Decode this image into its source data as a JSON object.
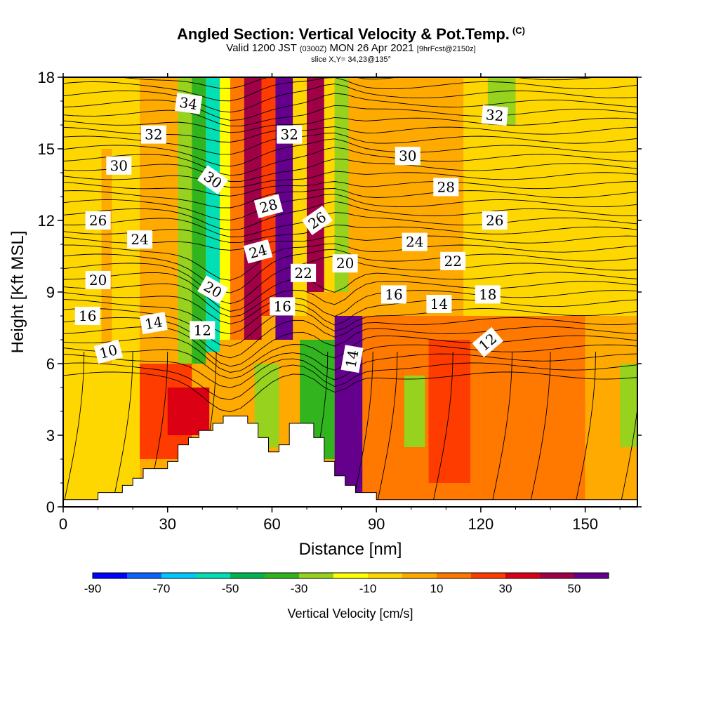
{
  "header": {
    "title": "Angled Section: Vertical Velocity & Pot.Temp.",
    "title_suffix": "(C)",
    "valid_prefix": "Valid 1200 JST",
    "valid_z": "(0300Z)",
    "valid_date": "MON 26 Apr 2021",
    "forecast": "[9hrFcst@2150z]",
    "slice": "slice X,Y= 34,23@135°"
  },
  "chart_data": {
    "type": "heatmap",
    "xlabel": "Distance [nm]",
    "ylabel": "Height [Kft MSL]",
    "xlim": [
      0,
      165
    ],
    "ylim": [
      0,
      18
    ],
    "xticks": [
      0,
      30,
      60,
      90,
      120,
      150
    ],
    "yticks": [
      0,
      3,
      6,
      9,
      12,
      15,
      18
    ],
    "colorbar": {
      "title": "Vertical Velocity [cm/s]",
      "bounds": [
        -90,
        60
      ],
      "tick_labels": [
        "-90",
        "-70",
        "-50",
        "-30",
        "-10",
        "10",
        "30",
        "50"
      ],
      "tick_values": [
        -90,
        -70,
        -50,
        -30,
        -10,
        10,
        30,
        50
      ],
      "colors": [
        "#0000ff",
        "#0a64ff",
        "#00c8ff",
        "#00e0b4",
        "#00b450",
        "#32b41e",
        "#96d21e",
        "#ffff00",
        "#ffd700",
        "#ffaa00",
        "#ff7800",
        "#ff3c00",
        "#dc0014",
        "#a00046",
        "#64008c"
      ]
    },
    "terrain": [
      [
        0,
        0.3
      ],
      [
        10,
        0.3
      ],
      [
        10,
        0.6
      ],
      [
        17,
        0.6
      ],
      [
        17,
        0.9
      ],
      [
        20,
        0.9
      ],
      [
        20,
        1.2
      ],
      [
        23,
        1.2
      ],
      [
        23,
        1.6
      ],
      [
        30,
        1.6
      ],
      [
        30,
        1.9
      ],
      [
        33,
        1.9
      ],
      [
        33,
        2.6
      ],
      [
        36,
        2.6
      ],
      [
        36,
        2.9
      ],
      [
        39,
        2.9
      ],
      [
        39,
        3.2
      ],
      [
        43,
        3.2
      ],
      [
        43,
        3.5
      ],
      [
        46,
        3.5
      ],
      [
        46,
        3.8
      ],
      [
        53,
        3.8
      ],
      [
        53,
        3.5
      ],
      [
        56,
        3.5
      ],
      [
        56,
        2.9
      ],
      [
        59,
        2.9
      ],
      [
        59,
        2.3
      ],
      [
        62,
        2.3
      ],
      [
        62,
        2.6
      ],
      [
        65,
        2.6
      ],
      [
        65,
        3.5
      ],
      [
        72,
        3.5
      ],
      [
        72,
        2.9
      ],
      [
        75,
        2.9
      ],
      [
        75,
        1.9
      ],
      [
        78,
        1.9
      ],
      [
        78,
        1.3
      ],
      [
        81,
        1.3
      ],
      [
        81,
        0.9
      ],
      [
        84,
        0.9
      ],
      [
        84,
        0.6
      ],
      [
        90,
        0.6
      ],
      [
        90,
        0.3
      ],
      [
        165,
        0.3
      ]
    ],
    "contour_labels": [
      {
        "text": "34",
        "x": 36,
        "y": 16.9,
        "angle": 8
      },
      {
        "text": "32",
        "x": 26,
        "y": 15.6,
        "angle": 0
      },
      {
        "text": "30",
        "x": 16,
        "y": 14.3,
        "angle": 0
      },
      {
        "text": "30",
        "x": 43,
        "y": 13.7,
        "angle": 35
      },
      {
        "text": "26",
        "x": 10,
        "y": 12.0,
        "angle": 0
      },
      {
        "text": "24",
        "x": 22,
        "y": 11.2,
        "angle": 0
      },
      {
        "text": "20",
        "x": 10,
        "y": 9.5,
        "angle": 0
      },
      {
        "text": "20",
        "x": 43,
        "y": 9.1,
        "angle": 30
      },
      {
        "text": "16",
        "x": 7,
        "y": 8.0,
        "angle": 0
      },
      {
        "text": "14",
        "x": 26,
        "y": 7.7,
        "angle": -10
      },
      {
        "text": "12",
        "x": 40,
        "y": 7.4,
        "angle": 0
      },
      {
        "text": "10",
        "x": 13,
        "y": 6.5,
        "angle": -15
      },
      {
        "text": "32",
        "x": 65,
        "y": 15.6,
        "angle": 0
      },
      {
        "text": "28",
        "x": 59,
        "y": 12.6,
        "angle": -15
      },
      {
        "text": "26",
        "x": 73,
        "y": 12.0,
        "angle": -35
      },
      {
        "text": "24",
        "x": 56,
        "y": 10.7,
        "angle": -15
      },
      {
        "text": "22",
        "x": 69,
        "y": 9.8,
        "angle": 0
      },
      {
        "text": "20",
        "x": 81,
        "y": 10.2,
        "angle": 0
      },
      {
        "text": "16",
        "x": 63,
        "y": 8.4,
        "angle": 0
      },
      {
        "text": "14",
        "x": 83,
        "y": 6.2,
        "angle": -80
      },
      {
        "text": "16",
        "x": 95,
        "y": 8.9,
        "angle": 0
      },
      {
        "text": "14",
        "x": 108,
        "y": 8.5,
        "angle": 0
      },
      {
        "text": "18",
        "x": 122,
        "y": 8.9,
        "angle": 0
      },
      {
        "text": "30",
        "x": 99,
        "y": 14.7,
        "angle": 0
      },
      {
        "text": "28",
        "x": 110,
        "y": 13.4,
        "angle": 0
      },
      {
        "text": "26",
        "x": 124,
        "y": 12.0,
        "angle": 0
      },
      {
        "text": "24",
        "x": 101,
        "y": 11.1,
        "angle": 0
      },
      {
        "text": "22",
        "x": 112,
        "y": 10.3,
        "angle": 0
      },
      {
        "text": "32",
        "x": 124,
        "y": 16.4,
        "angle": 5
      },
      {
        "text": "12",
        "x": 122,
        "y": 6.9,
        "angle": -40
      }
    ],
    "velocity_field": [
      {
        "x": [
          0,
          22
        ],
        "y": [
          0,
          18
        ],
        "value": -10
      },
      {
        "x": [
          22,
          37
        ],
        "y": [
          0,
          18
        ],
        "value": 0
      },
      {
        "x": [
          11,
          14
        ],
        "y": [
          6,
          15
        ],
        "value": 5
      },
      {
        "x": [
          33,
          37
        ],
        "y": [
          6,
          18
        ],
        "value": -30
      },
      {
        "x": [
          37,
          41
        ],
        "y": [
          6,
          18
        ],
        "value": -40
      },
      {
        "x": [
          41,
          45
        ],
        "y": [
          6.5,
          18
        ],
        "value": -60
      },
      {
        "x": [
          45,
          48
        ],
        "y": [
          7,
          18
        ],
        "value": -20
      },
      {
        "x": [
          48,
          52
        ],
        "y": [
          7,
          18
        ],
        "value": 10
      },
      {
        "x": [
          52,
          57
        ],
        "y": [
          7,
          18
        ],
        "value": 40
      },
      {
        "x": [
          57,
          61
        ],
        "y": [
          8,
          18
        ],
        "value": 20
      },
      {
        "x": [
          61,
          66
        ],
        "y": [
          7,
          18
        ],
        "value": 50
      },
      {
        "x": [
          66,
          70
        ],
        "y": [
          8,
          18
        ],
        "value": -10
      },
      {
        "x": [
          70,
          75
        ],
        "y": [
          9,
          18
        ],
        "value": 40
      },
      {
        "x": [
          75,
          78
        ],
        "y": [
          9,
          18
        ],
        "value": -10
      },
      {
        "x": [
          78,
          82
        ],
        "y": [
          9,
          18
        ],
        "value": -30
      },
      {
        "x": [
          22,
          37
        ],
        "y": [
          2,
          6
        ],
        "value": 20
      },
      {
        "x": [
          30,
          42
        ],
        "y": [
          3,
          5
        ],
        "value": 30
      },
      {
        "x": [
          55,
          62
        ],
        "y": [
          2.5,
          6
        ],
        "value": -30
      },
      {
        "x": [
          68,
          78
        ],
        "y": [
          2,
          7
        ],
        "value": -40
      },
      {
        "x": [
          78,
          86
        ],
        "y": [
          0.5,
          8
        ],
        "value": 50
      },
      {
        "x": [
          86,
          120
        ],
        "y": [
          0,
          8
        ],
        "value": 10
      },
      {
        "x": [
          98,
          104
        ],
        "y": [
          2.5,
          5.5
        ],
        "value": -30
      },
      {
        "x": [
          105,
          117
        ],
        "y": [
          1,
          7
        ],
        "value": 20
      },
      {
        "x": [
          120,
          150
        ],
        "y": [
          0,
          8
        ],
        "value": 10
      },
      {
        "x": [
          150,
          165
        ],
        "y": [
          0,
          8
        ],
        "value": 0
      },
      {
        "x": [
          160,
          165
        ],
        "y": [
          2.5,
          6
        ],
        "value": -30
      },
      {
        "x": [
          82,
          115
        ],
        "y": [
          8,
          18
        ],
        "value": 5
      },
      {
        "x": [
          115,
          165
        ],
        "y": [
          8,
          18
        ],
        "value": -10
      },
      {
        "x": [
          122,
          130
        ],
        "y": [
          16,
          18
        ],
        "value": -30
      }
    ]
  }
}
